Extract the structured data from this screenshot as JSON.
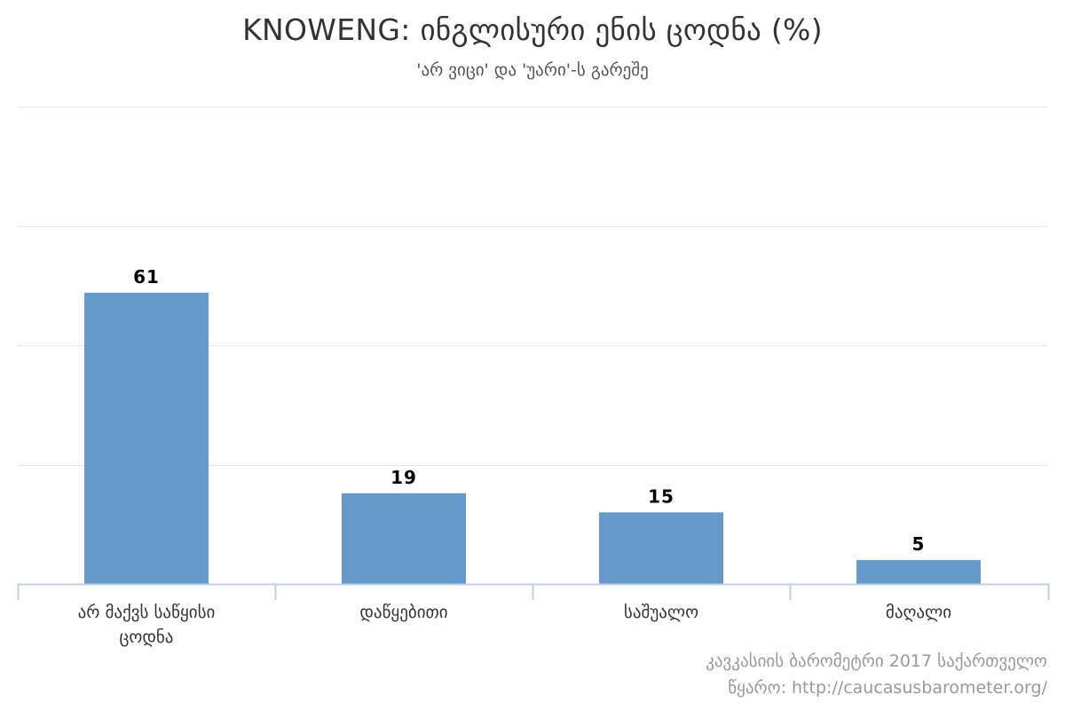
{
  "chart_data": {
    "type": "bar",
    "title": "KNOWENG: ინგლისური ენის ცოდნა (%)",
    "subtitle": "'არ ვიცი' და 'უარი'-ს გარეშე",
    "categories": [
      [
        "არ მაქვს საწყისი",
        "ცოდნა"
      ],
      [
        "დაწყებითი"
      ],
      [
        "საშუალო"
      ],
      [
        "მაღალი"
      ]
    ],
    "values": [
      61,
      19,
      15,
      5
    ],
    "ylim": [
      0,
      100
    ],
    "grid": true,
    "legend": "none",
    "colors": {
      "bar": "#6699cc",
      "grid": "#e6e6e6",
      "axis": "#c0d0e0",
      "tick_label": "#333333",
      "data_label": "#000000"
    }
  },
  "credits": {
    "line1": "კავკასიის ბარომეტრი 2017 საქართველო",
    "line2": "წყარო: http://caucasusbarometer.org/"
  }
}
